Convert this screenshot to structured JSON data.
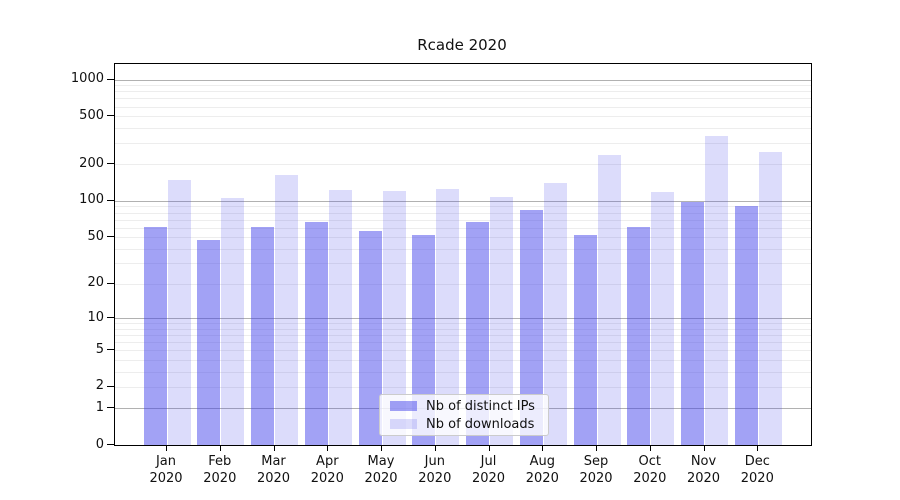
{
  "chart_data": {
    "type": "bar",
    "title": "Rcade 2020",
    "categories": [
      "Jan 2020",
      "Feb 2020",
      "Mar 2020",
      "Apr 2020",
      "May 2020",
      "Jun 2020",
      "Jul 2020",
      "Aug 2020",
      "Sep 2020",
      "Oct 2020",
      "Nov 2020",
      "Dec 2020"
    ],
    "series": [
      {
        "name": "Nb of distinct IPs",
        "color": "rgba(60,60,235,0.48)",
        "values": [
          61,
          47,
          61,
          67,
          56,
          52,
          67,
          84,
          52,
          61,
          98,
          90
        ]
      },
      {
        "name": "Nb of downloads",
        "color": "rgba(60,60,235,0.18)",
        "values": [
          148,
          106,
          165,
          122,
          121,
          125,
          108,
          140,
          240,
          118,
          341,
          252
        ]
      }
    ],
    "xlabel": "",
    "ylabel": "",
    "yscale": "log1p",
    "ylim": [
      0,
      1340
    ],
    "yticks": [
      0,
      1,
      2,
      5,
      10,
      20,
      50,
      100,
      200,
      500,
      1000
    ],
    "grid": {
      "major_color": "#b1b1b1",
      "minor_color": "#ededed",
      "visible": true
    },
    "legend": {
      "position": "bottom-center",
      "background": "rgba(255,255,255,0.8)",
      "border_color": "#cccccc"
    }
  }
}
